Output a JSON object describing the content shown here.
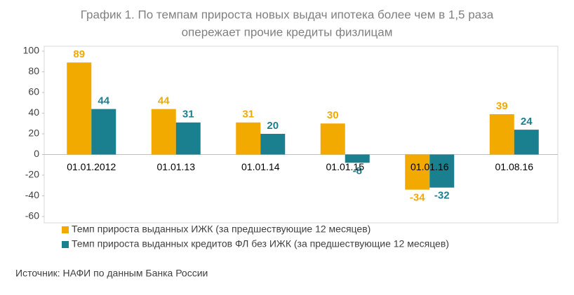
{
  "chart_data": {
    "type": "bar",
    "title": [
      "График 1. По темпам прироста новых выдач ипотека более чем в 1,5 раза",
      "опережает прочие кредиты физлицам"
    ],
    "categories": [
      "01.01.2012",
      "01.01.13",
      "01.01.14",
      "01.01.15",
      "01.01.16",
      "01.08.16"
    ],
    "series": [
      {
        "name": "Темп прироста выданных ИЖК (за предшествующие 12 месяцев)",
        "color": "#f2a900",
        "values": [
          89,
          44,
          31,
          30,
          -34,
          39
        ]
      },
      {
        "name": "Темп прироста выданных кредитов ФЛ без ИЖК (за предшествующие 12 месяцев)",
        "color": "#1a7f8e",
        "values": [
          44,
          31,
          20,
          -8,
          -32,
          24
        ]
      }
    ],
    "ylim": [
      -60,
      100
    ],
    "yticks": [
      -60,
      -40,
      -20,
      0,
      20,
      40,
      60,
      80,
      100
    ],
    "source": "Источник: НАФИ по данным Банка России"
  }
}
